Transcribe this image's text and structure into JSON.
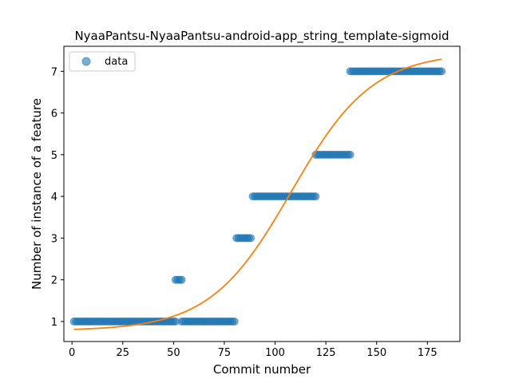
{
  "chart_data": {
    "type": "scatter",
    "title": "NyaaPantsu-NyaaPantsu-android-app_string_template-sigmoid",
    "xlabel": "Commit number",
    "ylabel": "Number of instance of a feature",
    "xlim": [
      -4,
      191
    ],
    "ylim": [
      0.52,
      7.6
    ],
    "xticks": [
      0,
      25,
      50,
      75,
      100,
      125,
      150,
      175
    ],
    "yticks": [
      1,
      2,
      3,
      4,
      5,
      6,
      7
    ],
    "grid": false,
    "legend_position": "top-left",
    "series": [
      {
        "name": "data",
        "kind": "scatter",
        "color": "#1f77b4",
        "segments": [
          {
            "x_start": 1,
            "x_end": 51,
            "y": 1
          },
          {
            "x_start": 51,
            "x_end": 54,
            "y": 2
          },
          {
            "x_start": 54,
            "x_end": 80,
            "y": 1
          },
          {
            "x_start": 81,
            "x_end": 88,
            "y": 3
          },
          {
            "x_start": 89,
            "x_end": 120,
            "y": 4
          },
          {
            "x_start": 120,
            "x_end": 137,
            "y": 5
          },
          {
            "x_start": 137,
            "x_end": 182,
            "y": 7
          }
        ]
      },
      {
        "name": "",
        "kind": "line",
        "color": "#ff7f0e",
        "model": "sigmoid",
        "params": {
          "lower": 0.78,
          "upper": 7.45,
          "midpoint": 108,
          "rate": 0.05
        },
        "x_range": [
          1,
          182
        ]
      }
    ]
  }
}
